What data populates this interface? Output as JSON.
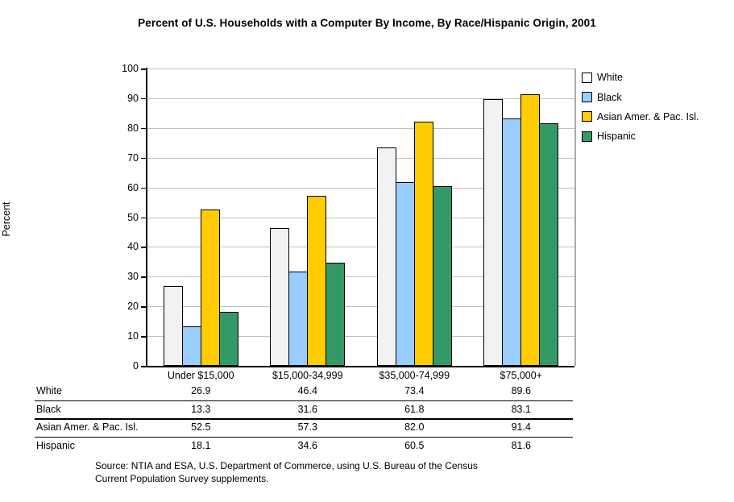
{
  "chart_data": {
    "type": "bar",
    "title": "Percent of U.S. Households with a Computer By Income, By Race/Hispanic Origin, 2001",
    "xlabel": "",
    "ylabel": "Percent",
    "ylim": [
      0,
      100
    ],
    "ytick_step": 10,
    "grid": true,
    "legend_position": "right-top",
    "categories": [
      "Under $15,000",
      "$15,000-34,999",
      "$35,000-74,999",
      "$75,000+"
    ],
    "series": [
      {
        "name": "White",
        "color": "#F2F2F2",
        "legend_color": "#FFFFFF",
        "values": [
          26.9,
          46.4,
          73.4,
          89.6
        ]
      },
      {
        "name": "Black",
        "color": "#99CCFF",
        "legend_color": "#99CCFF",
        "values": [
          13.3,
          31.6,
          61.8,
          83.1
        ]
      },
      {
        "name": "Asian Amer. & Pac. Isl.",
        "color": "#FFCC00",
        "legend_color": "#FFCC00",
        "values": [
          52.5,
          57.3,
          82.0,
          91.4
        ]
      },
      {
        "name": "Hispanic",
        "color": "#339966",
        "legend_color": "#339966",
        "values": [
          18.1,
          34.6,
          60.5,
          81.6
        ]
      }
    ],
    "colors": {
      "gridline": "#C0C0C0",
      "plot_border": "#ABABAB",
      "axis": "#000000",
      "bar_border": "#000000"
    }
  },
  "data_table": {
    "rows": [
      {
        "label": "White",
        "values": [
          "26.9",
          "46.4",
          "73.4",
          "89.6"
        ]
      },
      {
        "label": "Black",
        "values": [
          "13.3",
          "31.6",
          "61.8",
          "83.1"
        ]
      },
      {
        "label": "Asian Amer. & Pac. Isl.",
        "values": [
          "52.5",
          "57.3",
          "82.0",
          "91.4"
        ]
      },
      {
        "label": "Hispanic",
        "values": [
          "18.1",
          "34.6",
          "60.5",
          "81.6"
        ]
      }
    ]
  },
  "source_note": {
    "line1": "Source:  NTIA and ESA, U.S. Department of Commerce, using U.S. Bureau of the Census",
    "line2": "Current Population Survey supplements."
  }
}
